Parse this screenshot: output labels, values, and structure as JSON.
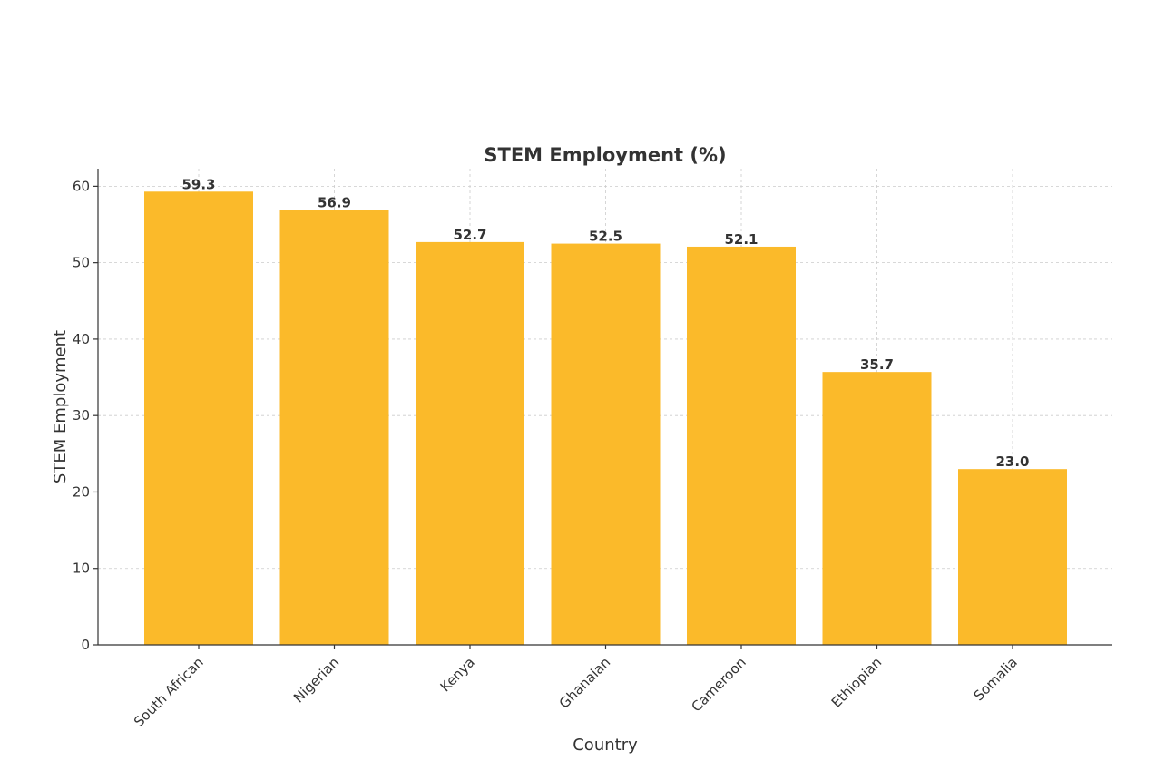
{
  "chart_data": {
    "type": "bar",
    "title": "STEM Employment (%)",
    "xlabel": "Country",
    "ylabel": "STEM Employment",
    "categories": [
      "South African",
      "Nigerian",
      "Kenya",
      "Ghanaian",
      "Cameroon",
      "Ethiopian",
      "Somalia"
    ],
    "values": [
      59.3,
      56.9,
      52.7,
      52.5,
      52.1,
      35.7,
      23.0
    ],
    "value_labels": [
      "59.3",
      "56.9",
      "52.7",
      "52.5",
      "52.1",
      "35.7",
      "23.0"
    ],
    "yticks": [
      0,
      10,
      20,
      30,
      40,
      50,
      60
    ],
    "ylim": [
      0,
      62.3
    ],
    "grid": true,
    "bar_color": "#FBBA2A"
  }
}
